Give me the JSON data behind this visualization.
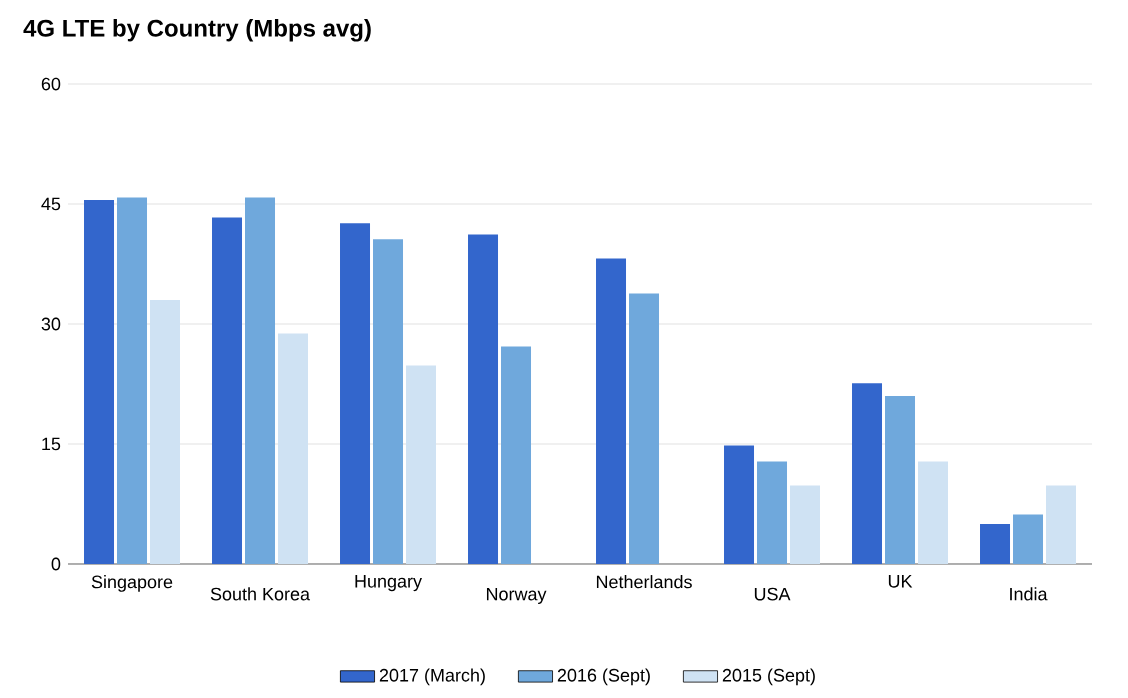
{
  "chart_data": {
    "type": "bar",
    "title": "4G LTE by Country (Mbps avg)",
    "categories": [
      "Singapore",
      "South Korea",
      "Hungary",
      "Norway",
      "Netherlands",
      "USA",
      "UK",
      "India"
    ],
    "series": [
      {
        "name": "2017 (March)",
        "color": "#3366cc",
        "values": [
          45.5,
          43.3,
          42.6,
          41.2,
          38.2,
          14.8,
          22.6,
          5
        ]
      },
      {
        "name": "2016 (Sept)",
        "color": "#6fa8dc",
        "values": [
          45.8,
          45.8,
          40.6,
          27.2,
          33.8,
          12.8,
          21,
          6.2
        ]
      },
      {
        "name": "2015 (Sept)",
        "color": "#cfe2f3",
        "values": [
          33,
          28.8,
          24.8,
          null,
          null,
          9.8,
          12.8,
          9.8
        ]
      }
    ],
    "ylim": [
      0,
      60
    ],
    "yticks": [
      0,
      15,
      30,
      45,
      60
    ],
    "grid": "y",
    "legend": "bottom"
  }
}
